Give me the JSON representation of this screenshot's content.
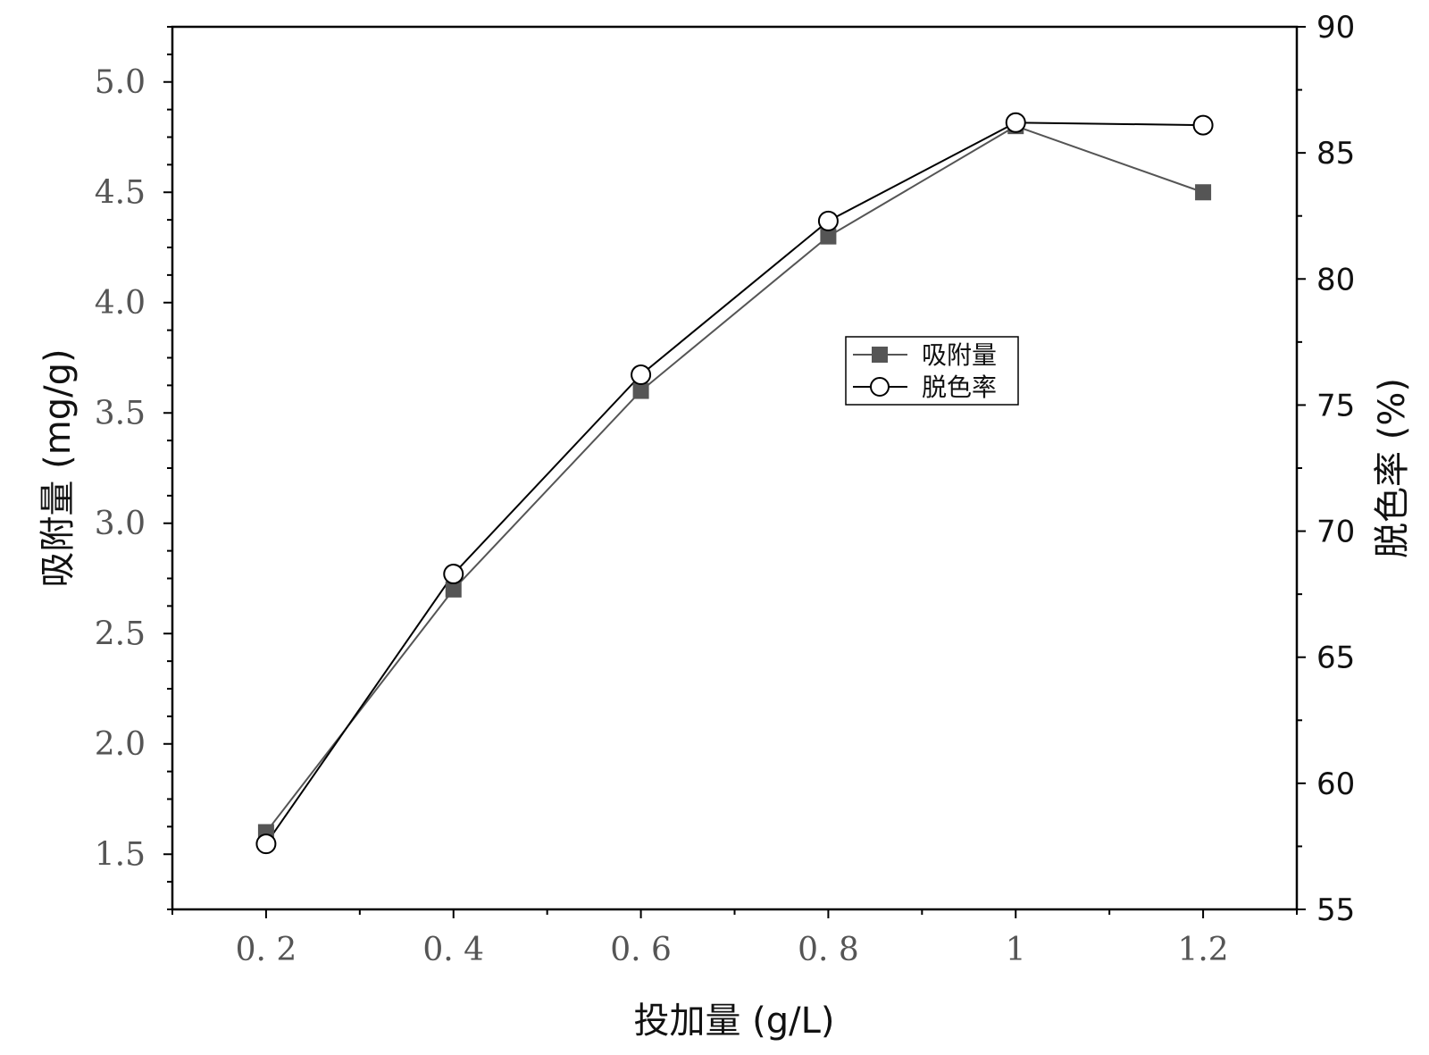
{
  "chart_data": {
    "type": "line",
    "categories": [
      "0. 2",
      "0. 4",
      "0. 6",
      "0. 8",
      "1",
      "1.2"
    ],
    "x": [
      0.2,
      0.4,
      0.6,
      0.8,
      1.0,
      1.2
    ],
    "xlabel": "投加量 (g/L)",
    "ylabel_left": "吸附量 (mg/g)",
    "ylabel_right": "脱色率 (%)",
    "ylim_left": [
      1.25,
      5.25
    ],
    "ylim_right": [
      55,
      90
    ],
    "xlim": [
      0.1,
      1.3
    ],
    "yticks_left": [
      "1.5",
      "2.0",
      "2.5",
      "3.0",
      "3.5",
      "4.0",
      "4.5",
      "5.0"
    ],
    "yticks_right": [
      "55",
      "60",
      "65",
      "70",
      "75",
      "80",
      "85",
      "90"
    ],
    "series": [
      {
        "name": "吸附量",
        "axis": "left",
        "marker": "filled-square",
        "color": "#555555",
        "values": [
          1.6,
          2.7,
          3.6,
          4.3,
          4.8,
          4.5
        ]
      },
      {
        "name": "脱色率",
        "axis": "right",
        "marker": "open-circle",
        "color": "#000000",
        "values": [
          57.6,
          68.3,
          76.2,
          82.3,
          86.2,
          86.1
        ]
      }
    ],
    "legend_position": "center-right",
    "grid": false
  }
}
